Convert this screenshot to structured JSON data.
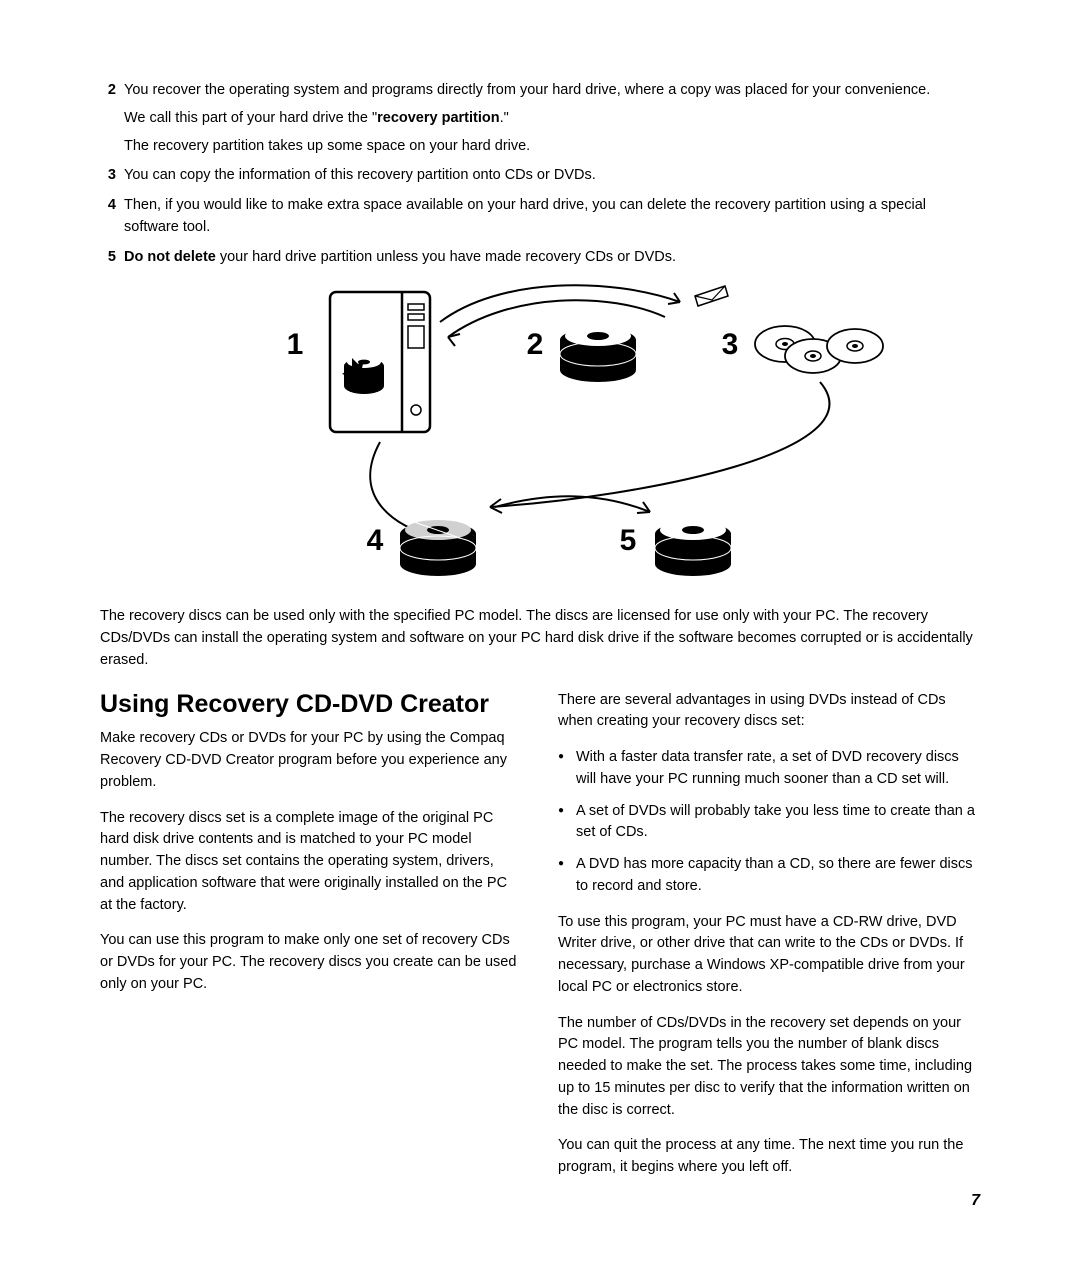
{
  "list": {
    "items": [
      {
        "num": "2",
        "lines": [
          "You recover the operating system and programs directly from your hard drive, where a copy was placed for your convenience.",
          "We call this part of your hard drive the \"<b>recovery partition</b>.\"",
          "The recovery partition takes up some space on your hard drive."
        ]
      },
      {
        "num": "3",
        "lines": [
          "You can copy the information of this recovery partition onto CDs or DVDs."
        ]
      },
      {
        "num": "4",
        "lines": [
          "Then, if you would like to make extra space available on your hard drive, you can delete the recovery partition using a special software tool."
        ]
      },
      {
        "num": "5",
        "lines": [
          "<b>Do not delete</b> your hard drive partition unless you have made recovery CDs or DVDs."
        ]
      }
    ]
  },
  "diagram": {
    "labels": [
      "1",
      "2",
      "3",
      "4",
      "5"
    ],
    "label_fontsize": 30,
    "label_fontweight": 800,
    "stroke": "#000000",
    "fill_dark": "#000000",
    "fill_light": "#ffffff",
    "fill_gray": "#d0d0d0"
  },
  "after_diagram": "The recovery discs can be used only with the specified PC model. The discs are licensed for use only with your PC. The recovery CDs/DVDs can install the operating system and software on your PC hard disk drive if the software becomes corrupted or is accidentally erased.",
  "section": {
    "heading": "Using Recovery CD-DVD Creator",
    "left_paras": [
      "Make recovery CDs or DVDs for your PC by using the Compaq Recovery CD-DVD Creator program before you experience any problem.",
      "The recovery discs set is a complete image of the original PC hard disk drive contents and is matched to your PC model number. The discs set contains the operating system, drivers, and application software that were originally installed on the PC at the factory.",
      "You can use this program to make only one set of recovery CDs or DVDs for your PC. The recovery discs you create can be used only on your PC."
    ],
    "right_intro": "There are several advantages in using DVDs instead of CDs when creating your recovery discs set:",
    "right_bullets": [
      "With a faster data transfer rate, a set of DVD recovery discs will have your PC running much sooner than a CD set will.",
      "A set of DVDs will probably take you less time to create than a set of CDs.",
      "A DVD has more capacity than a CD, so there are fewer discs to record and store."
    ],
    "right_paras": [
      "To use this program, your PC must have a CD-RW drive, DVD Writer drive, or other drive that can write to the CDs or DVDs. If necessary, purchase a Windows XP-compatible drive from your local PC or electronics store.",
      "The number of CDs/DVDs in the recovery set depends on your PC model. The program tells you the number of blank discs needed to make the set. The process takes some time, including up to 15 minutes per disc to verify that the information written on the disc is correct.",
      "You can quit the process at any time. The next time you run the program, it begins where you left off."
    ]
  },
  "page_number": "7",
  "colors": {
    "text": "#000000",
    "background": "#ffffff"
  },
  "typography": {
    "body_fontsize": 14.5,
    "heading_fontsize": 25,
    "heading_weight": 800
  }
}
